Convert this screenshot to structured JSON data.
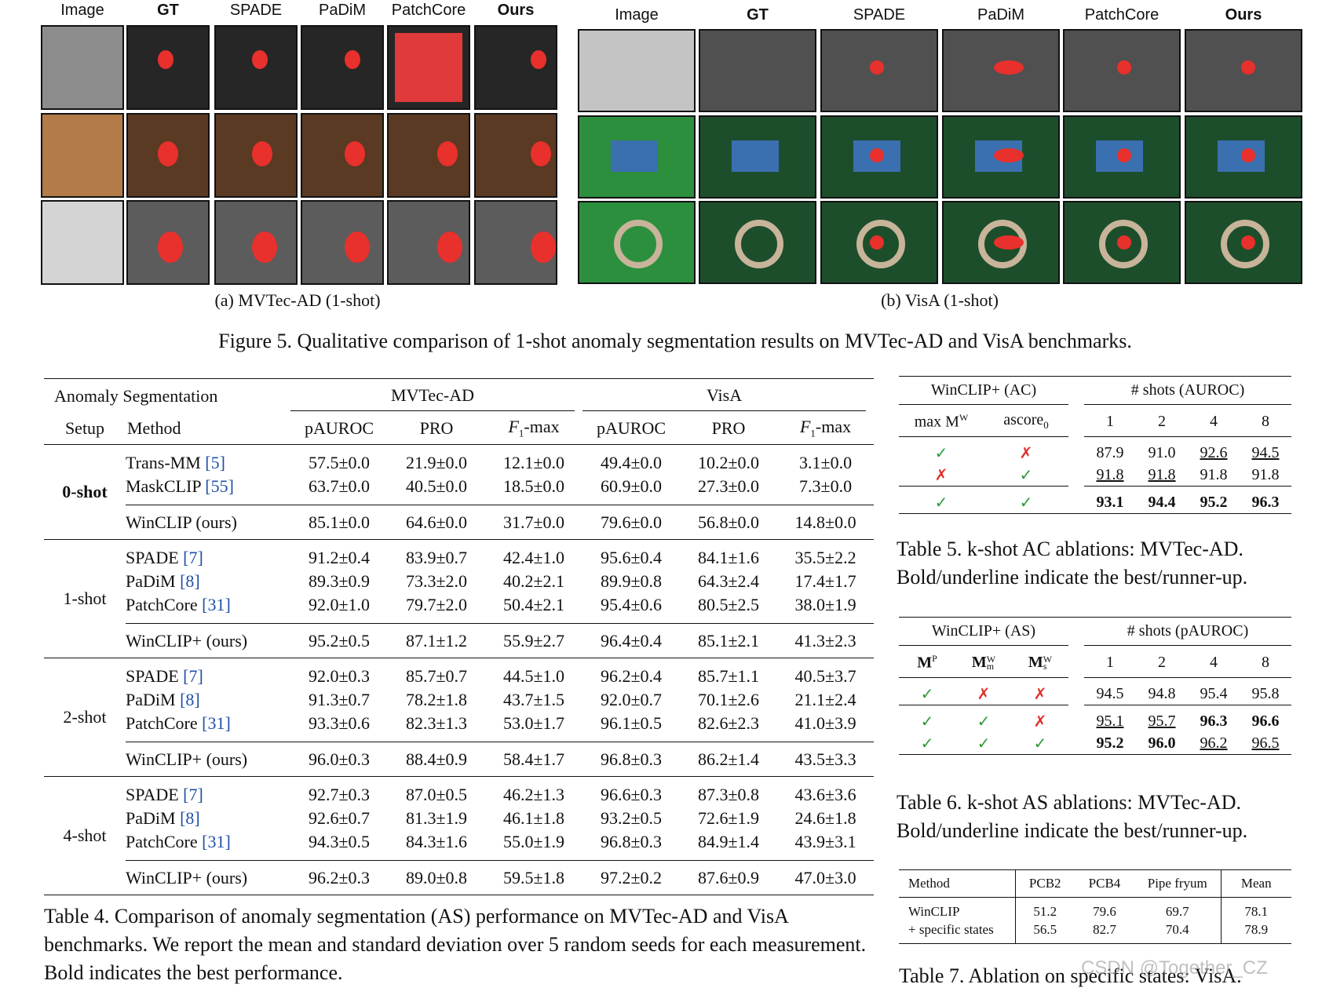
{
  "figure": {
    "columns_a": [
      "Image",
      "GT",
      "SPADE",
      "PaDiM",
      "PatchCore",
      "Ours"
    ],
    "columns_b": [
      "Image",
      "GT",
      "SPADE",
      "PaDiM",
      "PatchCore",
      "Ours"
    ],
    "caption_a": "(a) MVTec-AD (1-shot)",
    "caption_b": "(b) VisA (1-shot)",
    "caption": "Figure 5. Qualitative comparison of 1-shot anomaly segmentation results on MVTec-AD and VisA benchmarks."
  },
  "table4": {
    "header": {
      "task": "Anomaly Segmentation",
      "dataset_a": "MVTec-AD",
      "dataset_b": "VisA",
      "setup": "Setup",
      "method": "Method",
      "metrics": [
        "pAUROC",
        "PRO",
        {
          "text": "F",
          "sub": "1",
          "rest": "-max"
        },
        "pAUROC",
        "PRO",
        {
          "text": "F",
          "sub": "1",
          "rest": "-max"
        }
      ]
    },
    "groups": [
      {
        "setup": "0-shot",
        "setup_style": "bold",
        "rows": [
          {
            "method": "Trans-MM",
            "ref": "[5]",
            "cells": [
              "57.5±0.0",
              "21.9±0.0",
              "12.1±0.0",
              "49.4±0.0",
              "10.2±0.0",
              "3.1±0.0"
            ]
          },
          {
            "method": "MaskCLIP",
            "ref": "[55]",
            "cells": [
              "63.7±0.0",
              "40.5±0.0",
              "18.5±0.0",
              "60.9±0.0",
              "27.3±0.0",
              "7.3±0.0"
            ]
          }
        ],
        "ours": {
          "method": "WinCLIP (ours)",
          "cells": [
            "85.1±0.0",
            "64.6±0.0",
            "31.7±0.0",
            "79.6±0.0",
            "56.8±0.0",
            "14.8±0.0"
          ]
        }
      },
      {
        "setup": "1-shot",
        "rows": [
          {
            "method": "SPADE",
            "ref": "[7]",
            "cells": [
              "91.2±0.4",
              "83.9±0.7",
              "42.4±1.0",
              "95.6±0.4",
              "84.1±1.6",
              "35.5±2.2"
            ]
          },
          {
            "method": "PaDiM",
            "ref": "[8]",
            "cells": [
              "89.3±0.9",
              "73.3±2.0",
              "40.2±2.1",
              "89.9±0.8",
              "64.3±2.4",
              "17.4±1.7"
            ]
          },
          {
            "method": "PatchCore",
            "ref": "[31]",
            "cells": [
              "92.0±1.0",
              "79.7±2.0",
              "50.4±2.1",
              "95.4±0.6",
              "80.5±2.5",
              "38.0±1.9"
            ]
          }
        ],
        "ours": {
          "method": "WinCLIP+ (ours)",
          "cells": [
            "95.2±0.5",
            "87.1±1.2",
            "55.9±2.7",
            "96.4±0.4",
            "85.1±2.1",
            "41.3±2.3"
          ]
        }
      },
      {
        "setup": "2-shot",
        "rows": [
          {
            "method": "SPADE",
            "ref": "[7]",
            "cells": [
              "92.0±0.3",
              "85.7±0.7",
              "44.5±1.0",
              "96.2±0.4",
              "85.7±1.1",
              "40.5±3.7"
            ]
          },
          {
            "method": "PaDiM",
            "ref": "[8]",
            "cells": [
              "91.3±0.7",
              "78.2±1.8",
              "43.7±1.5",
              "92.0±0.7",
              "70.1±2.6",
              "21.1±2.4"
            ]
          },
          {
            "method": "PatchCore",
            "ref": "[31]",
            "cells": [
              "93.3±0.6",
              "82.3±1.3",
              "53.0±1.7",
              "96.1±0.5",
              "82.6±2.3",
              "41.0±3.9"
            ]
          }
        ],
        "ours": {
          "method": "WinCLIP+ (ours)",
          "cells": [
            "96.0±0.3",
            "88.4±0.9",
            "58.4±1.7",
            "96.8±0.3",
            "86.2±1.4",
            "43.5±3.3"
          ]
        }
      },
      {
        "setup": "4-shot",
        "rows": [
          {
            "method": "SPADE",
            "ref": "[7]",
            "cells": [
              "92.7±0.3",
              "87.0±0.5",
              "46.2±1.3",
              "96.6±0.3",
              "87.3±0.8",
              "43.6±3.6"
            ]
          },
          {
            "method": "PaDiM",
            "ref": "[8]",
            "cells": [
              "92.6±0.7",
              "81.3±1.9",
              "46.1±1.8",
              "93.2±0.5",
              "72.6±1.9",
              "24.6±1.8"
            ]
          },
          {
            "method": "PatchCore",
            "ref": "[31]",
            "cells": [
              "94.3±0.5",
              "84.3±1.6",
              "55.0±1.9",
              "96.8±0.3",
              "84.9±1.4",
              "43.9±3.1"
            ]
          }
        ],
        "ours": {
          "method": "WinCLIP+ (ours)",
          "cells": [
            "96.2±0.3",
            "89.0±0.8",
            "59.5±1.8",
            "97.2±0.2",
            "87.6±0.9",
            "47.0±3.0"
          ]
        }
      }
    ],
    "caption": "Table 4. Comparison of anomaly segmentation (AS) performance on MVTec-AD and VisA benchmarks. We report the mean and standard deviation over 5 random seeds for each measurement. Bold indicates the best performance."
  },
  "table5": {
    "group_a": "WinCLIP+ (AC)",
    "group_b": "# shots (AUROC)",
    "flags": [
      {
        "text": "max M",
        "sup": "W"
      },
      {
        "text": "ascore",
        "sub": "0"
      }
    ],
    "shots": [
      "1",
      "2",
      "4",
      "8"
    ],
    "mark_colors": {
      "✓": "#2e9a3a",
      "✗": "#e0302c"
    },
    "rows": [
      {
        "flags": [
          "✓",
          "✗"
        ],
        "cells": [
          {
            "text": "87.9"
          },
          {
            "text": "91.0"
          },
          {
            "text": "92.6",
            "style": "underline"
          },
          {
            "text": "94.5",
            "style": "underline"
          }
        ]
      },
      {
        "flags": [
          "✗",
          "✓"
        ],
        "cells": [
          {
            "text": "91.8",
            "style": "underline"
          },
          {
            "text": "91.8",
            "style": "underline"
          },
          {
            "text": "91.8"
          },
          {
            "text": "91.8"
          }
        ]
      },
      {
        "flags": [
          "✓",
          "✓"
        ],
        "cells": [
          {
            "text": "93.1",
            "style": "bold"
          },
          {
            "text": "94.4",
            "style": "bold"
          },
          {
            "text": "95.2",
            "style": "bold"
          },
          {
            "text": "96.3",
            "style": "bold"
          }
        ]
      }
    ],
    "caption": "Table 5. k-shot AC ablations: MVTec-AD. Bold/underline indicate the best/runner-up."
  },
  "table6": {
    "group_a": "WinCLIP+ (AS)",
    "group_b": "# shots (pAUROC)",
    "flags": [
      {
        "text": "M",
        "sup": "P"
      },
      {
        "text": "M",
        "sup": "W",
        "sub": "m"
      },
      {
        "text": "M",
        "sup": "W",
        "sub": "s"
      }
    ],
    "shots": [
      "1",
      "2",
      "4",
      "8"
    ],
    "mark_colors": {
      "✓": "#2e9a3a",
      "✗": "#e0302c"
    },
    "rows": [
      {
        "flags": [
          "✓",
          "✗",
          "✗"
        ],
        "cells": [
          {
            "text": "94.5"
          },
          {
            "text": "94.8"
          },
          {
            "text": "95.4"
          },
          {
            "text": "95.8"
          }
        ]
      },
      {
        "flags": [
          "✓",
          "✓",
          "✗"
        ],
        "cells": [
          {
            "text": "95.1",
            "style": "underline"
          },
          {
            "text": "95.7",
            "style": "underline"
          },
          {
            "text": "96.3",
            "style": "bold"
          },
          {
            "text": "96.6",
            "style": "bold"
          }
        ]
      },
      {
        "flags": [
          "✓",
          "✓",
          "✓"
        ],
        "cells": [
          {
            "text": "95.2",
            "style": "bold"
          },
          {
            "text": "96.0",
            "style": "bold"
          },
          {
            "text": "96.2",
            "style": "underline"
          },
          {
            "text": "96.5",
            "style": "underline"
          }
        ]
      }
    ],
    "caption": "Table 6. k-shot AS ablations: MVTec-AD. Bold/underline indicate the best/runner-up."
  },
  "table7": {
    "columns": [
      "Method",
      "PCB2",
      "PCB4",
      "Pipe fryum",
      "Mean"
    ],
    "rows": [
      {
        "method": "WinCLIP",
        "cells": [
          "51.2",
          "79.6",
          "69.7",
          "78.1"
        ]
      },
      {
        "method": "+ specific states",
        "cells": [
          "56.5",
          "82.7",
          "70.4",
          "78.9"
        ],
        "style": "bold"
      }
    ],
    "caption": "Table 7. Ablation on specific states: VisA."
  },
  "watermark": "CSDN @Together_CZ"
}
